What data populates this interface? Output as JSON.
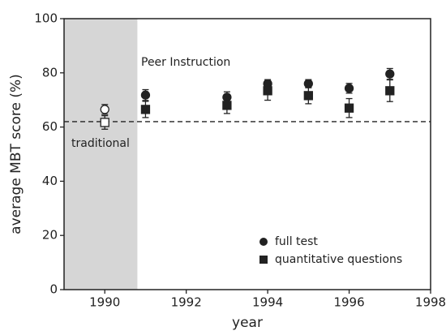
{
  "chart_data": {
    "type": "scatter",
    "x_label": "year",
    "y_label": "average MBT score (%)",
    "annotations": [
      "Peer Instruction",
      "traditional"
    ],
    "shaded_xrange": [
      1989,
      1990.8
    ],
    "hline": 62,
    "xlim": [
      1989,
      1998
    ],
    "xticks": [
      1990,
      1992,
      1994,
      1996,
      1998
    ],
    "ylim": [
      0,
      100
    ],
    "yticks": [
      0,
      20,
      40,
      60,
      80,
      100
    ],
    "legend": "lower right",
    "series": [
      {
        "name": "full test",
        "marker": "circle",
        "color": "#222222",
        "x": [
          1990,
          1991,
          1993,
          1994,
          1995,
          1996,
          1997
        ],
        "values": [
          66.5,
          71.8,
          71,
          76,
          76,
          74.3,
          79.6
        ],
        "errors": [
          1.8,
          2,
          2,
          1.5,
          1.5,
          1.8,
          2
        ],
        "point_fills": [
          "#ffffff",
          "#222222",
          "#222222",
          "#222222",
          "#222222",
          "#222222",
          "#222222"
        ]
      },
      {
        "name": "quantitative questions",
        "marker": "square",
        "color": "#222222",
        "x": [
          1990,
          1991,
          1993,
          1994,
          1995,
          1996,
          1997
        ],
        "values": [
          61.7,
          66.5,
          68,
          73.4,
          71.6,
          67,
          73.4
        ],
        "errors": [
          2.5,
          3,
          3,
          3.5,
          3,
          3.5,
          4
        ],
        "point_fills": [
          "#ffffff",
          "#222222",
          "#222222",
          "#222222",
          "#222222",
          "#222222",
          "#222222"
        ]
      }
    ]
  }
}
